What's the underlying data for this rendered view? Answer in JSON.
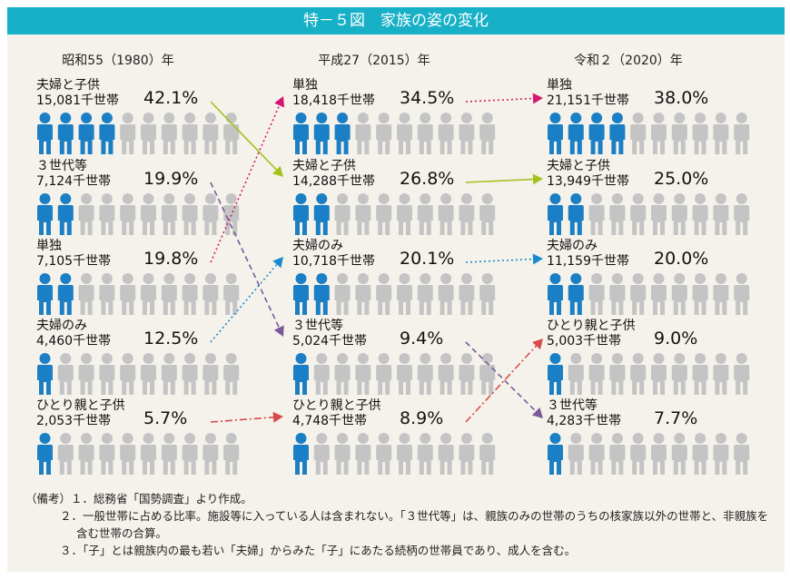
{
  "title": "特－５図　家族の姿の変化",
  "chart_data": {
    "type": "pictogram",
    "title": "特－５図　家族の姿の変化",
    "icons_per_row": 10,
    "colors": {
      "filled": "#1a7fc4",
      "empty": "#c4c4c4",
      "title_bar": "#17b0c7"
    },
    "years": [
      {
        "label": "昭和55（1980）年",
        "rows": [
          {
            "category": "夫婦と子供",
            "households": "15,081千世帯",
            "percent": "42.1%",
            "value": 42.1,
            "filled": 4
          },
          {
            "category": "３世代等",
            "households": "7,124千世帯",
            "percent": "19.9%",
            "value": 19.9,
            "filled": 2
          },
          {
            "category": "単独",
            "households": "7,105千世帯",
            "percent": "19.8%",
            "value": 19.8,
            "filled": 2
          },
          {
            "category": "夫婦のみ",
            "households": "4,460千世帯",
            "percent": "12.5%",
            "value": 12.5,
            "filled": 1
          },
          {
            "category": "ひとり親と子供",
            "households": "2,053千世帯",
            "percent": "5.7%",
            "value": 5.7,
            "filled": 1
          }
        ]
      },
      {
        "label": "平成27（2015）年",
        "rows": [
          {
            "category": "単独",
            "households": "18,418千世帯",
            "percent": "34.5%",
            "value": 34.5,
            "filled": 3
          },
          {
            "category": "夫婦と子供",
            "households": "14,288千世帯",
            "percent": "26.8%",
            "value": 26.8,
            "filled": 2
          },
          {
            "category": "夫婦のみ",
            "households": "10,718千世帯",
            "percent": "20.1%",
            "value": 20.1,
            "filled": 2
          },
          {
            "category": "３世代等",
            "households": "5,024千世帯",
            "percent": "9.4%",
            "value": 9.4,
            "filled": 1
          },
          {
            "category": "ひとり親と子供",
            "households": "4,748千世帯",
            "percent": "8.9%",
            "value": 8.9,
            "filled": 1
          }
        ]
      },
      {
        "label": "令和２（2020）年",
        "rows": [
          {
            "category": "単独",
            "households": "21,151千世帯",
            "percent": "38.0%",
            "value": 38.0,
            "filled": 4
          },
          {
            "category": "夫婦と子供",
            "households": "13,949千世帯",
            "percent": "25.0%",
            "value": 25.0,
            "filled": 2
          },
          {
            "category": "夫婦のみ",
            "households": "11,159千世帯",
            "percent": "20.0%",
            "value": 20.0,
            "filled": 2
          },
          {
            "category": "ひとり親と子供",
            "households": "5,003千世帯",
            "percent": "9.0%",
            "value": 9.0,
            "filled": 1
          },
          {
            "category": "３世代等",
            "households": "4,283千世帯",
            "percent": "7.7%",
            "value": 7.7,
            "filled": 1
          }
        ]
      }
    ],
    "links": [
      {
        "category": "夫婦と子供",
        "color": "#a4c21d",
        "style": "solid"
      },
      {
        "category": "３世代等",
        "color": "#7a5a9a",
        "style": "dashed"
      },
      {
        "category": "単独",
        "color": "#d6166e",
        "style": "dotted"
      },
      {
        "category": "夫婦のみ",
        "color": "#1a8ad0",
        "style": "dotted"
      },
      {
        "category": "ひとり親と子供",
        "color": "#d94a4a",
        "style": "dash-dot"
      }
    ]
  },
  "notes": {
    "label": "（備考）",
    "items": [
      "１．総務省「国勢調査」より作成。",
      "２．一般世帯に占める比率。施設等に入っている人は含まれない。「３世代等」は、親族のみの世帯のうちの核家族以外の世帯と、非親族を含む世帯の合算。",
      "３．「子」とは親族内の最も若い「夫婦」からみた「子」にあたる続柄の世帯員であり、成人を含む。"
    ]
  }
}
